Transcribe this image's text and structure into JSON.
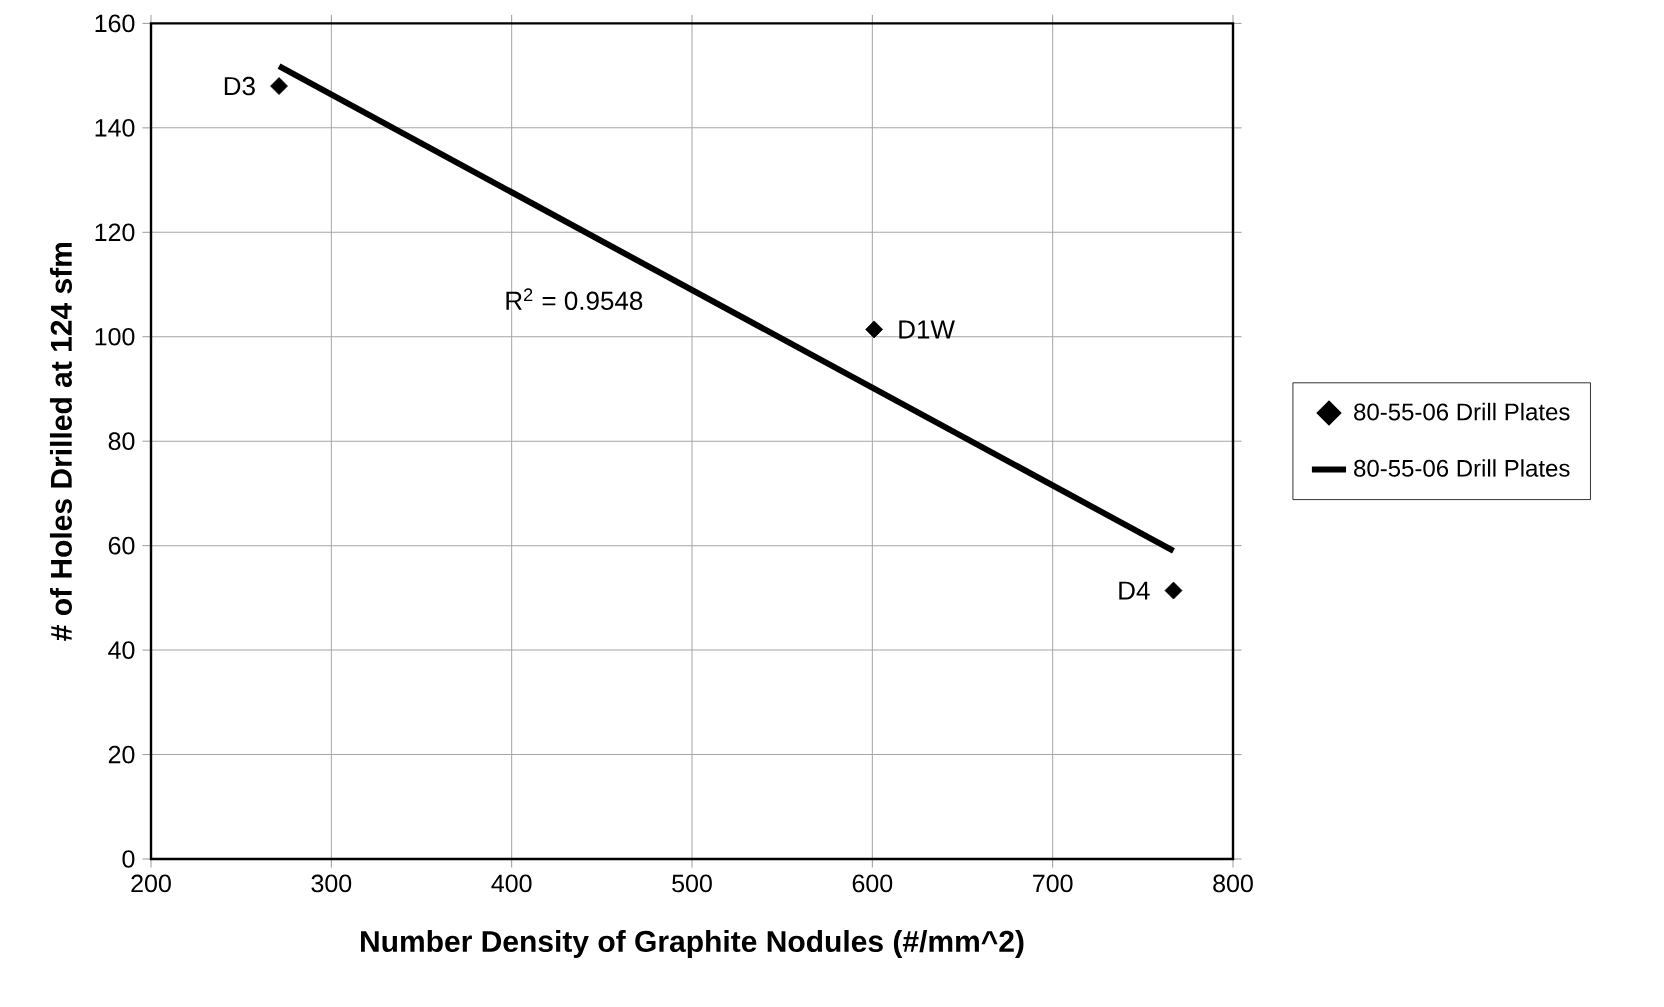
{
  "chart_data": {
    "type": "scatter",
    "xlabel": "Number Density of Graphite Nodules (#/mm^2)",
    "ylabel": "# of Holes Drilled at 124 sfm",
    "xlim": [
      200,
      800
    ],
    "xticks": [
      200,
      300,
      400,
      500,
      600,
      700,
      800
    ],
    "ylim": [
      0,
      160
    ],
    "yticks": [
      0,
      20,
      40,
      60,
      80,
      100,
      120,
      140,
      160
    ],
    "grid": true,
    "legend": "right",
    "series": [
      {
        "name": "80-55-06 Drill Plates",
        "marker": "diamond",
        "color": "#000000",
        "x": [
          271,
          601,
          767
        ],
        "values": [
          148,
          101.4,
          51.4
        ]
      },
      {
        "name": "80-55-06 Drill Plates",
        "type": "line",
        "marker": "none",
        "color": "#000000",
        "x": [
          271,
          767
        ],
        "values": [
          151.8,
          59.0
        ]
      }
    ],
    "annotations": [
      {
        "text": "D3",
        "x": 271,
        "y": 148
      },
      {
        "text": "D1W",
        "x": 601,
        "y": 101.4
      },
      {
        "text": "D4",
        "x": 767,
        "y": 51.4
      },
      "R$^{2}$ = 0.9548"
    ]
  }
}
